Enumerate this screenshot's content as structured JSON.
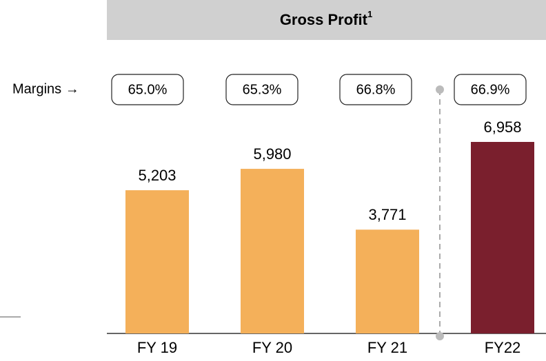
{
  "chart_data": {
    "type": "bar",
    "title": "Gross Profit",
    "title_note": "1",
    "categories": [
      "FY 19",
      "FY 20",
      "FY 21",
      "FY22"
    ],
    "values": [
      5203,
      5980,
      3771,
      6958
    ],
    "value_labels": [
      "5,203",
      "5,980",
      "3,771",
      "6,958"
    ],
    "colors": [
      "#f4b05a",
      "#f4b05a",
      "#f4b05a",
      "#7a1f2d"
    ],
    "margins": {
      "label": "Margins →",
      "values": [
        65.0,
        65.3,
        66.8,
        66.9
      ],
      "value_labels": [
        "65.0%",
        "65.3%",
        "66.8%",
        "66.9%"
      ]
    }
  }
}
